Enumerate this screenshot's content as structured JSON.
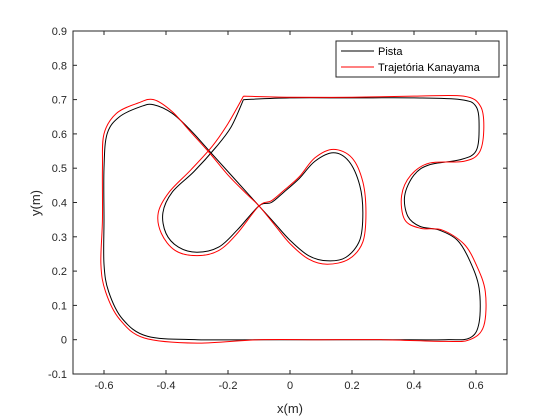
{
  "chart_data": {
    "type": "line",
    "title": "",
    "xlabel": "x(m)",
    "ylabel": "y(m)",
    "xlim": [
      -0.7,
      0.7
    ],
    "ylim": [
      -0.1,
      0.9
    ],
    "xticks": [
      -0.6,
      -0.4,
      -0.2,
      0,
      0.2,
      0.4,
      0.6
    ],
    "xtick_labels": [
      "-0.6",
      "-0.4",
      "-0.2",
      "0",
      "0.2",
      "0.4",
      "0.6"
    ],
    "yticks": [
      -0.1,
      0,
      0.1,
      0.2,
      0.3,
      0.4,
      0.5,
      0.6,
      0.7,
      0.8,
      0.9
    ],
    "ytick_labels": [
      "-0.1",
      "0",
      "0.1",
      "0.2",
      "0.3",
      "0.4",
      "0.5",
      "0.6",
      "0.7",
      "0.8",
      "0.9"
    ],
    "grid": false,
    "legend_position": "top-right",
    "series": [
      {
        "name": "Pista",
        "color": "#000000",
        "points": [
          [
            -0.15,
            0.7
          ],
          [
            0.0,
            0.705
          ],
          [
            0.2,
            0.705
          ],
          [
            0.4,
            0.705
          ],
          [
            0.55,
            0.7
          ],
          [
            0.6,
            0.68
          ],
          [
            0.61,
            0.62
          ],
          [
            0.6,
            0.55
          ],
          [
            0.55,
            0.525
          ],
          [
            0.45,
            0.51
          ],
          [
            0.4,
            0.48
          ],
          [
            0.37,
            0.42
          ],
          [
            0.38,
            0.36
          ],
          [
            0.42,
            0.33
          ],
          [
            0.48,
            0.32
          ],
          [
            0.54,
            0.29
          ],
          [
            0.58,
            0.23
          ],
          [
            0.61,
            0.15
          ],
          [
            0.61,
            0.05
          ],
          [
            0.58,
            0.005
          ],
          [
            0.5,
            0.0
          ],
          [
            0.3,
            0.0
          ],
          [
            0.1,
            0.0
          ],
          [
            -0.1,
            0.0
          ],
          [
            -0.3,
            0.0
          ],
          [
            -0.46,
            0.01
          ],
          [
            -0.54,
            0.06
          ],
          [
            -0.585,
            0.14
          ],
          [
            -0.6,
            0.22
          ],
          [
            -0.6,
            0.35
          ],
          [
            -0.6,
            0.5
          ],
          [
            -0.59,
            0.6
          ],
          [
            -0.55,
            0.65
          ],
          [
            -0.48,
            0.68
          ],
          [
            -0.44,
            0.685
          ],
          [
            -0.38,
            0.66
          ],
          [
            -0.32,
            0.61
          ],
          [
            -0.26,
            0.55
          ],
          [
            -0.2,
            0.49
          ],
          [
            -0.14,
            0.43
          ],
          [
            -0.1,
            0.39
          ],
          [
            -0.05,
            0.34
          ],
          [
            0.0,
            0.29
          ],
          [
            0.06,
            0.245
          ],
          [
            0.12,
            0.23
          ],
          [
            0.18,
            0.24
          ],
          [
            0.225,
            0.29
          ],
          [
            0.235,
            0.37
          ],
          [
            0.225,
            0.45
          ],
          [
            0.19,
            0.52
          ],
          [
            0.14,
            0.545
          ],
          [
            0.08,
            0.52
          ],
          [
            0.03,
            0.47
          ],
          [
            -0.02,
            0.43
          ],
          [
            -0.06,
            0.4
          ],
          [
            -0.1,
            0.39
          ],
          [
            -0.17,
            0.32
          ],
          [
            -0.23,
            0.27
          ],
          [
            -0.3,
            0.255
          ],
          [
            -0.36,
            0.27
          ],
          [
            -0.4,
            0.31
          ],
          [
            -0.41,
            0.37
          ],
          [
            -0.38,
            0.43
          ],
          [
            -0.31,
            0.49
          ],
          [
            -0.24,
            0.56
          ],
          [
            -0.19,
            0.62
          ],
          [
            -0.15,
            0.7
          ]
        ]
      },
      {
        "name": "Trajetória Kanayama",
        "color": "#ff0000",
        "points": [
          [
            -0.15,
            0.71
          ],
          [
            0.0,
            0.707
          ],
          [
            0.2,
            0.707
          ],
          [
            0.4,
            0.71
          ],
          [
            0.56,
            0.71
          ],
          [
            0.615,
            0.68
          ],
          [
            0.625,
            0.61
          ],
          [
            0.61,
            0.545
          ],
          [
            0.56,
            0.52
          ],
          [
            0.45,
            0.515
          ],
          [
            0.39,
            0.48
          ],
          [
            0.36,
            0.42
          ],
          [
            0.37,
            0.35
          ],
          [
            0.42,
            0.325
          ],
          [
            0.49,
            0.32
          ],
          [
            0.56,
            0.28
          ],
          [
            0.6,
            0.22
          ],
          [
            0.63,
            0.14
          ],
          [
            0.625,
            0.04
          ],
          [
            0.58,
            0.0
          ],
          [
            0.5,
            -0.005
          ],
          [
            0.3,
            0.0
          ],
          [
            0.1,
            0.0
          ],
          [
            -0.1,
            0.0
          ],
          [
            -0.3,
            -0.01
          ],
          [
            -0.47,
            0.005
          ],
          [
            -0.55,
            0.06
          ],
          [
            -0.595,
            0.14
          ],
          [
            -0.61,
            0.22
          ],
          [
            -0.605,
            0.35
          ],
          [
            -0.605,
            0.5
          ],
          [
            -0.6,
            0.6
          ],
          [
            -0.56,
            0.66
          ],
          [
            -0.49,
            0.69
          ],
          [
            -0.44,
            0.7
          ],
          [
            -0.38,
            0.665
          ],
          [
            -0.32,
            0.605
          ],
          [
            -0.26,
            0.545
          ],
          [
            -0.2,
            0.48
          ],
          [
            -0.14,
            0.425
          ],
          [
            -0.1,
            0.39
          ],
          [
            -0.05,
            0.335
          ],
          [
            0.0,
            0.28
          ],
          [
            0.06,
            0.235
          ],
          [
            0.12,
            0.22
          ],
          [
            0.19,
            0.235
          ],
          [
            0.235,
            0.285
          ],
          [
            0.245,
            0.37
          ],
          [
            0.235,
            0.46
          ],
          [
            0.2,
            0.53
          ],
          [
            0.14,
            0.555
          ],
          [
            0.08,
            0.53
          ],
          [
            0.03,
            0.475
          ],
          [
            -0.02,
            0.435
          ],
          [
            -0.06,
            0.405
          ],
          [
            -0.1,
            0.39
          ],
          [
            -0.17,
            0.31
          ],
          [
            -0.23,
            0.26
          ],
          [
            -0.3,
            0.245
          ],
          [
            -0.37,
            0.26
          ],
          [
            -0.415,
            0.31
          ],
          [
            -0.425,
            0.37
          ],
          [
            -0.39,
            0.43
          ],
          [
            -0.32,
            0.495
          ],
          [
            -0.25,
            0.565
          ],
          [
            -0.2,
            0.63
          ],
          [
            -0.15,
            0.71
          ]
        ]
      }
    ]
  }
}
